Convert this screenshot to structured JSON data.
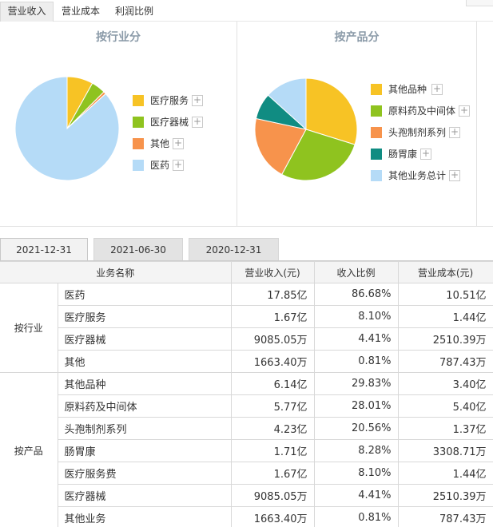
{
  "tabs": [
    "营业收入",
    "营业成本",
    "利润比例"
  ],
  "charts": {
    "industry": {
      "title": "按行业分"
    },
    "product": {
      "title": "按产品分"
    }
  },
  "chart_data": [
    {
      "type": "pie",
      "title": "按行业分",
      "labels": [
        "医疗服务",
        "医疗器械",
        "其他",
        "医药"
      ],
      "values": [
        8.1,
        4.41,
        0.81,
        86.68
      ],
      "colors": [
        "#f7c325",
        "#8fc31f",
        "#f7934c",
        "#b5dbf7"
      ],
      "legend": "right"
    },
    {
      "type": "pie",
      "title": "按产品分",
      "labels": [
        "其他品种",
        "原料药及中间体",
        "头孢制剂系列",
        "肠胃康",
        "其他业务总计"
      ],
      "values": [
        29.83,
        28.01,
        20.56,
        8.28,
        13.32
      ],
      "colors": [
        "#f7c325",
        "#8fc31f",
        "#f7934c",
        "#108c82",
        "#b5dbf7"
      ],
      "legend": "right"
    }
  ],
  "legend_plus": "+",
  "date_tabs": [
    "2021-12-31",
    "2021-06-30",
    "2020-12-31"
  ],
  "table": {
    "headers": [
      "业务名称",
      "营业收入(元)",
      "收入比例",
      "营业成本(元)"
    ],
    "groups": [
      {
        "label": "按行业",
        "rows": [
          [
            "医药",
            "17.85亿",
            "86.68%",
            "10.51亿"
          ],
          [
            "医疗服务",
            "1.67亿",
            "8.10%",
            "1.44亿"
          ],
          [
            "医疗器械",
            "9085.05万",
            "4.41%",
            "2510.39万"
          ],
          [
            "其他",
            "1663.40万",
            "0.81%",
            "787.43万"
          ]
        ]
      },
      {
        "label": "按产品",
        "rows": [
          [
            "其他品种",
            "6.14亿",
            "29.83%",
            "3.40亿"
          ],
          [
            "原料药及中间体",
            "5.77亿",
            "28.01%",
            "5.40亿"
          ],
          [
            "头孢制剂系列",
            "4.23亿",
            "20.56%",
            "1.37亿"
          ],
          [
            "肠胃康",
            "1.71亿",
            "8.28%",
            "3308.71万"
          ],
          [
            "医疗服务费",
            "1.67亿",
            "8.10%",
            "1.44亿"
          ],
          [
            "医疗器械",
            "9085.05万",
            "4.41%",
            "2510.39万"
          ],
          [
            "其他业务",
            "1663.40万",
            "0.81%",
            "787.43万"
          ]
        ]
      }
    ]
  }
}
